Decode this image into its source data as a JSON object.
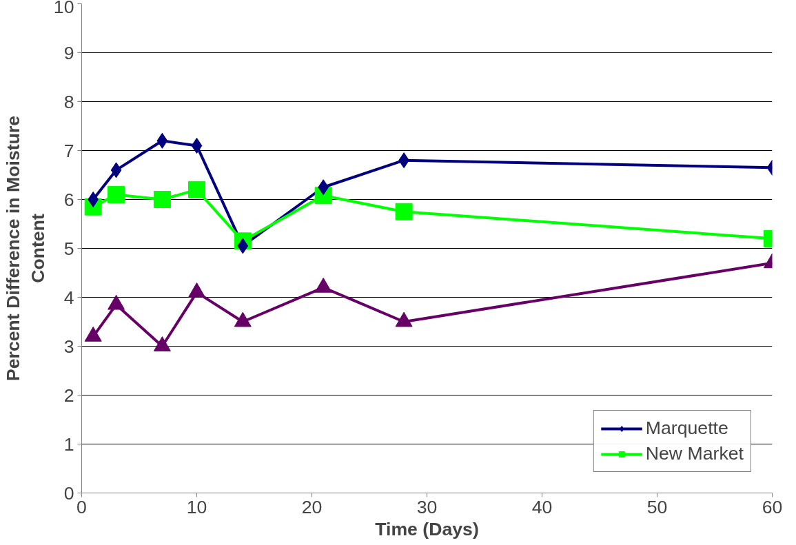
{
  "chart_data": {
    "type": "line",
    "xlabel": "Time (Days)",
    "ylabel": "Percent Difference in Moisture\nContent",
    "x": [
      1,
      3,
      7,
      10,
      14,
      21,
      28,
      60
    ],
    "series": [
      {
        "name": "Marquette",
        "color": "#000080",
        "marker": "diamond",
        "values": [
          6.0,
          6.6,
          7.2,
          7.1,
          5.05,
          6.25,
          6.8,
          6.65
        ]
      },
      {
        "name": "New Market",
        "color": "#00ff00",
        "marker": "square",
        "values": [
          5.85,
          6.1,
          6.0,
          6.2,
          5.15,
          6.08,
          5.75,
          5.2
        ]
      },
      {
        "color": "#660066",
        "marker": "triangle",
        "values": [
          3.2,
          3.85,
          3.0,
          4.1,
          3.5,
          4.2,
          3.5,
          4.7
        ]
      }
    ],
    "xlim": [
      0,
      60
    ],
    "xticks": [
      0,
      10,
      20,
      30,
      40,
      50,
      60
    ],
    "ylim": [
      0,
      10
    ],
    "yticks": [
      0,
      1,
      2,
      3,
      4,
      5,
      6,
      7,
      8,
      9,
      10
    ],
    "grid": "y",
    "legend": "bottom right",
    "line_style": "solid"
  }
}
